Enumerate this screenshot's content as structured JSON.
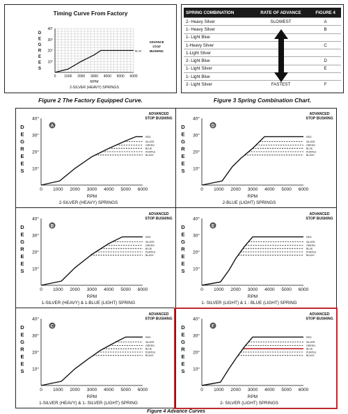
{
  "factory": {
    "title": "Timing Curve From Factory",
    "y_label_letters": [
      "D",
      "E",
      "G",
      "R",
      "E",
      "E",
      "S"
    ],
    "y_ticks": [
      "40°",
      "30°",
      "20°",
      "10°"
    ],
    "x_ticks": [
      "0",
      "1000",
      "2000",
      "3000",
      "4000",
      "5000",
      "6000"
    ],
    "x_label": "RPM",
    "bottom_label": "2-SILVER (HEAVY) SPRINGS",
    "legend_blue": "BLUE",
    "annot": [
      "ADVANCE",
      "STOP",
      "BUSHING"
    ],
    "caption": "Figure 2 The Factory Equipped Curve."
  },
  "spring_chart": {
    "headers": [
      "SPRING COMBINATION",
      "RATE OF ADVANCE",
      "FIGURE 4"
    ],
    "rows": [
      {
        "combo": "2- Heavy Silver",
        "rate": "SLOWEST",
        "fig": "A"
      },
      {
        "combo": "1- Heavy Silver",
        "rate": "",
        "fig": "B"
      },
      {
        "combo": "1- Light Blue",
        "rate": "",
        "fig": ""
      },
      {
        "combo": "1-Heavy Silver",
        "rate": "",
        "fig": "C"
      },
      {
        "combo": "1-Light Silver",
        "rate": "",
        "fig": ""
      },
      {
        "combo": "2- Light Blue",
        "rate": "",
        "fig": "D"
      },
      {
        "combo": "1- Light Silver",
        "rate": "",
        "fig": "E"
      },
      {
        "combo": "1- Light Blue",
        "rate": "",
        "fig": ""
      },
      {
        "combo": "2- Light Silver",
        "rate": "FASTEST",
        "fig": "F"
      }
    ],
    "caption": "Figure 3 Spring Combination Chart."
  },
  "common": {
    "y_label_letters": [
      "D",
      "E",
      "G",
      "R",
      "E",
      "E",
      "S"
    ],
    "y_ticks": [
      "40°",
      "30°",
      "20°",
      "10°"
    ],
    "x_ticks": [
      "0",
      "1000",
      "2000",
      "3000",
      "4000",
      "5000",
      "6000"
    ],
    "x_label": "RPM",
    "annot": [
      "ADVANCED",
      "STOP BUSHING"
    ],
    "legend": [
      "RED",
      "SILVER",
      "GREEN",
      "BLUE",
      "PURPLE",
      "BLACK"
    ]
  },
  "panels": [
    {
      "letter": "A",
      "label": "2-SILVER (HEAVY) SPRINGS",
      "curve": [
        [
          0,
          0
        ],
        [
          1100,
          2.5
        ],
        [
          2000,
          10
        ],
        [
          3000,
          17
        ],
        [
          4000,
          22
        ],
        [
          5000,
          26.5
        ],
        [
          5600,
          29
        ],
        [
          6000,
          29
        ]
      ],
      "highlight": false
    },
    {
      "letter": "D",
      "label": "2-BLUE (LIGHT) SPRINGS",
      "curve": [
        [
          0,
          0
        ],
        [
          1200,
          2.5
        ],
        [
          1800,
          11
        ],
        [
          2300,
          16
        ],
        [
          3000,
          22
        ],
        [
          3700,
          29
        ],
        [
          6000,
          29
        ]
      ],
      "highlight": false
    },
    {
      "letter": "B",
      "label": "1-SILVER (HEAVY) & 1-BLUE (LIGHT) SPRING",
      "curve": [
        [
          0,
          0
        ],
        [
          1200,
          2.5
        ],
        [
          2000,
          10.5
        ],
        [
          3000,
          18.5
        ],
        [
          4000,
          25
        ],
        [
          4800,
          29
        ],
        [
          6000,
          29
        ]
      ],
      "highlight": false
    },
    {
      "letter": "E",
      "label": "1- SILVER (LIGHT) & 1 - BLUE (LIGHT) SPRING",
      "curve": [
        [
          0,
          0
        ],
        [
          1100,
          2
        ],
        [
          1600,
          9
        ],
        [
          2000,
          16
        ],
        [
          2500,
          23
        ],
        [
          3000,
          29
        ],
        [
          6000,
          29
        ]
      ],
      "highlight": false
    },
    {
      "letter": "C",
      "label": "1-SILVER (HEAVY) & 1- SILVER (LIGHT) SPRING",
      "curve": [
        [
          0,
          0
        ],
        [
          1200,
          2.5
        ],
        [
          2000,
          10
        ],
        [
          2800,
          16
        ],
        [
          3500,
          21
        ],
        [
          4500,
          26.5
        ],
        [
          5000,
          29
        ],
        [
          6000,
          29
        ]
      ],
      "highlight": false
    },
    {
      "letter": "F",
      "label": "2- SILVER (LIGHT) SPRINGS",
      "curve": [
        [
          0,
          0
        ],
        [
          1100,
          2
        ],
        [
          1600,
          10
        ],
        [
          2000,
          16
        ],
        [
          2500,
          23
        ],
        [
          3000,
          29
        ],
        [
          6000,
          29
        ]
      ],
      "highlight": true
    }
  ],
  "figure4_caption": "Figure 4 Advance Curves",
  "colors": {
    "highlight": "#c0272d",
    "ink": "#111111"
  }
}
